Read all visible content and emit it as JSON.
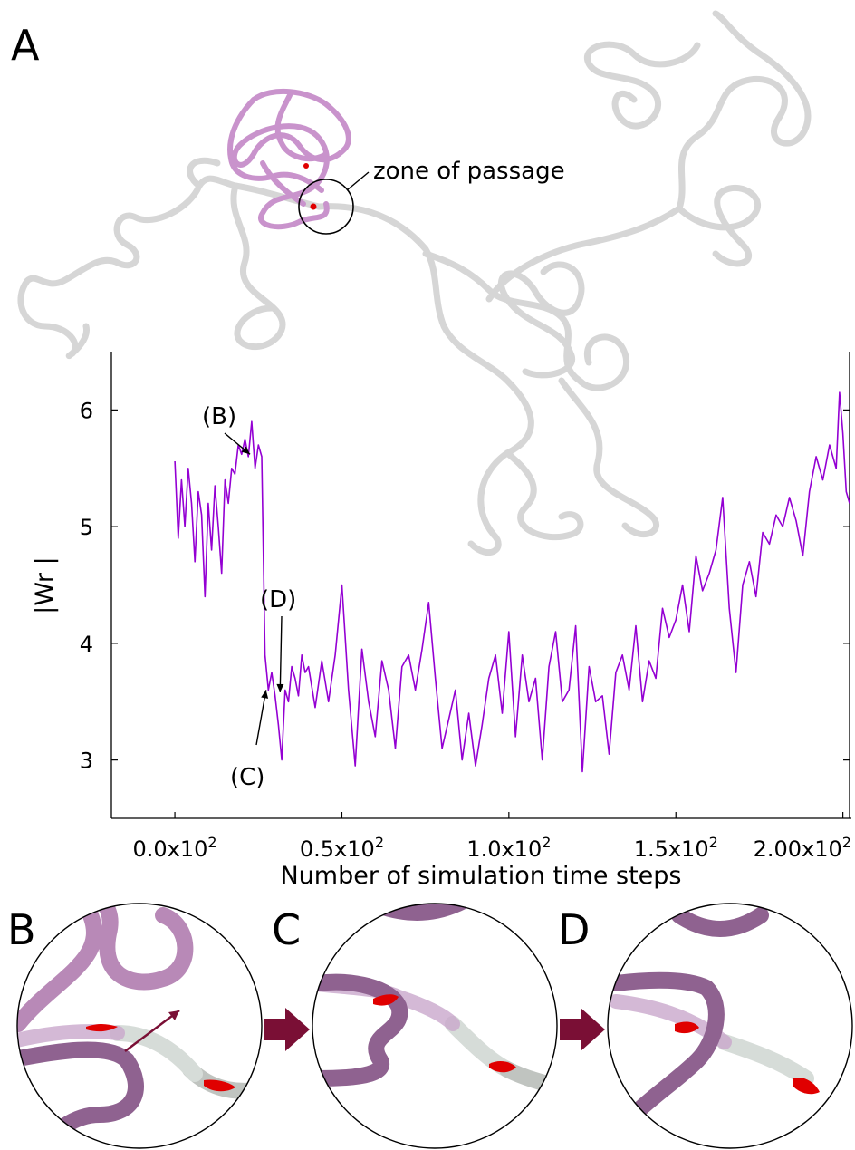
{
  "figure": {
    "panel_labels": [
      "A",
      "B",
      "C",
      "D"
    ],
    "zone_label": "zone of passage",
    "colors": {
      "trace": "#9400d3",
      "knot": "#c993cc",
      "knot_dark": "#7a4d78",
      "chain": "#d6d6d6",
      "bead": "#e00000",
      "arrow": "#7a0f35",
      "pointer": "#d81b8c"
    }
  },
  "chart_data": {
    "type": "line",
    "xlabel": "Number of simulation time steps",
    "ylabel": "|Wr |",
    "xlim": [
      -19,
      202
    ],
    "ylim": [
      2.5,
      6.5
    ],
    "xticks": [
      0,
      50,
      100,
      150,
      200
    ],
    "xtick_labels": [
      {
        "mant": "0.0x10",
        "exp": "2"
      },
      {
        "mant": "0.5x10",
        "exp": "2"
      },
      {
        "mant": "1.0x10",
        "exp": "2"
      },
      {
        "mant": "1.5x10",
        "exp": "2"
      },
      {
        "mant": "2.00x10",
        "exp": "2"
      }
    ],
    "yticks": [
      3,
      4,
      5,
      6
    ],
    "ytick_labels": [
      "3",
      "4",
      "5",
      "6"
    ],
    "grid": false,
    "series": [
      {
        "x": [
          0,
          1,
          2,
          3,
          4,
          5,
          6,
          7,
          8,
          9,
          10,
          11,
          12,
          13,
          14,
          15,
          16,
          17,
          18,
          19,
          20,
          21,
          22,
          23,
          24,
          25,
          26,
          27,
          28,
          29,
          30,
          31,
          32,
          33,
          34,
          35,
          36,
          37,
          38,
          39,
          40,
          42,
          44,
          46,
          48,
          50,
          52,
          54,
          56,
          58,
          60,
          62,
          64,
          66,
          68,
          70,
          72,
          74,
          76,
          78,
          80,
          82,
          84,
          86,
          88,
          90,
          92,
          94,
          96,
          98,
          100,
          102,
          104,
          106,
          108,
          110,
          112,
          114,
          116,
          118,
          120,
          122,
          124,
          126,
          128,
          130,
          132,
          134,
          136,
          138,
          140,
          142,
          144,
          146,
          148,
          150,
          152,
          154,
          156,
          158,
          160,
          162,
          164,
          166,
          168,
          170,
          172,
          174,
          176,
          178,
          180,
          182,
          184,
          186,
          188,
          190,
          192,
          194,
          196,
          198,
          199,
          200,
          201,
          202
        ],
        "y": [
          5.56,
          4.9,
          5.4,
          5.0,
          5.5,
          5.2,
          4.7,
          5.3,
          5.1,
          4.4,
          5.2,
          4.8,
          5.35,
          5.0,
          4.6,
          5.4,
          5.2,
          5.5,
          5.45,
          5.7,
          5.62,
          5.75,
          5.6,
          5.9,
          5.5,
          5.7,
          5.6,
          3.9,
          3.6,
          3.75,
          3.55,
          3.3,
          3.0,
          3.6,
          3.5,
          3.8,
          3.7,
          3.55,
          3.9,
          3.75,
          3.8,
          3.45,
          3.85,
          3.5,
          3.9,
          4.5,
          3.6,
          2.95,
          3.95,
          3.5,
          3.2,
          3.85,
          3.6,
          3.1,
          3.8,
          3.9,
          3.6,
          3.95,
          4.35,
          3.7,
          3.1,
          3.35,
          3.6,
          3.0,
          3.4,
          2.95,
          3.3,
          3.7,
          3.9,
          3.4,
          4.1,
          3.2,
          3.9,
          3.5,
          3.7,
          3.0,
          3.8,
          4.1,
          3.5,
          3.6,
          4.15,
          2.9,
          3.8,
          3.5,
          3.55,
          3.05,
          3.75,
          3.9,
          3.6,
          4.15,
          3.5,
          3.85,
          3.7,
          4.3,
          4.05,
          4.2,
          4.5,
          4.1,
          4.75,
          4.45,
          4.6,
          4.8,
          5.25,
          4.3,
          3.75,
          4.5,
          4.7,
          4.4,
          4.95,
          4.85,
          5.1,
          5.0,
          5.25,
          5.05,
          4.75,
          5.3,
          5.6,
          5.4,
          5.7,
          5.5,
          6.15,
          5.8,
          5.3,
          5.2
        ]
      }
    ],
    "annotations": [
      {
        "label": "(B)",
        "x": 22.5,
        "y": 5.62
      },
      {
        "label": "(C)",
        "x": 27.3,
        "y": 3.6
      },
      {
        "label": "(D)",
        "x": 31.5,
        "y": 3.58
      }
    ]
  }
}
